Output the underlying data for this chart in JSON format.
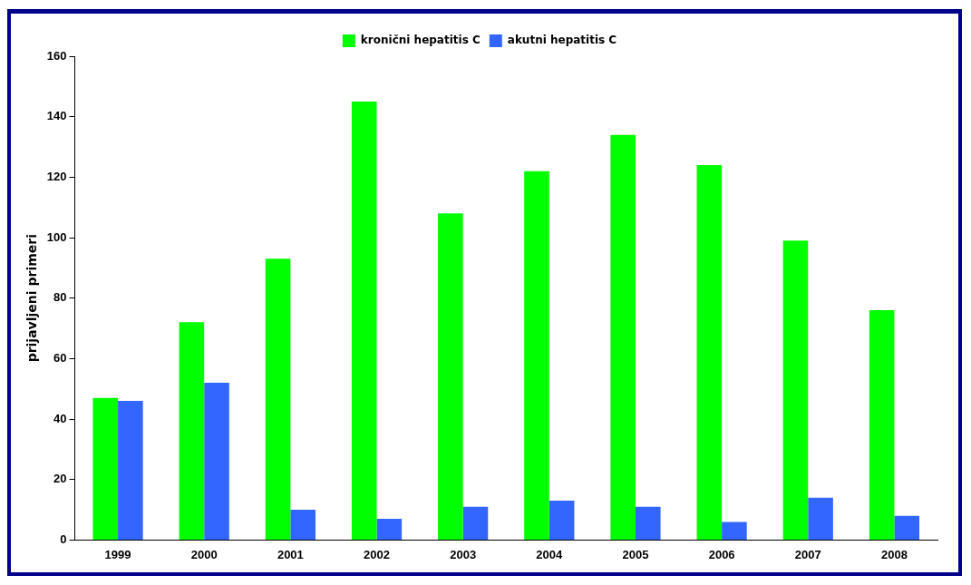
{
  "chart_data": {
    "type": "bar",
    "ylabel": "prijavljeni primeri",
    "categories": [
      "1999",
      "2000",
      "2001",
      "2002",
      "2003",
      "2004",
      "2005",
      "2006",
      "2007",
      "2008"
    ],
    "series": [
      {
        "name": "kronični hepatitis C",
        "color": "#00ff00",
        "values": [
          47,
          72,
          93,
          145,
          108,
          122,
          134,
          124,
          99,
          76
        ]
      },
      {
        "name": "akutni hepatitis C",
        "color": "#3366ff",
        "values": [
          46,
          52,
          10,
          7,
          11,
          13,
          11,
          6,
          14,
          8
        ]
      }
    ],
    "ylim": [
      0,
      160
    ],
    "yticks": [
      0,
      20,
      40,
      60,
      80,
      100,
      120,
      140,
      160
    ],
    "grid": false,
    "legend": "top"
  }
}
